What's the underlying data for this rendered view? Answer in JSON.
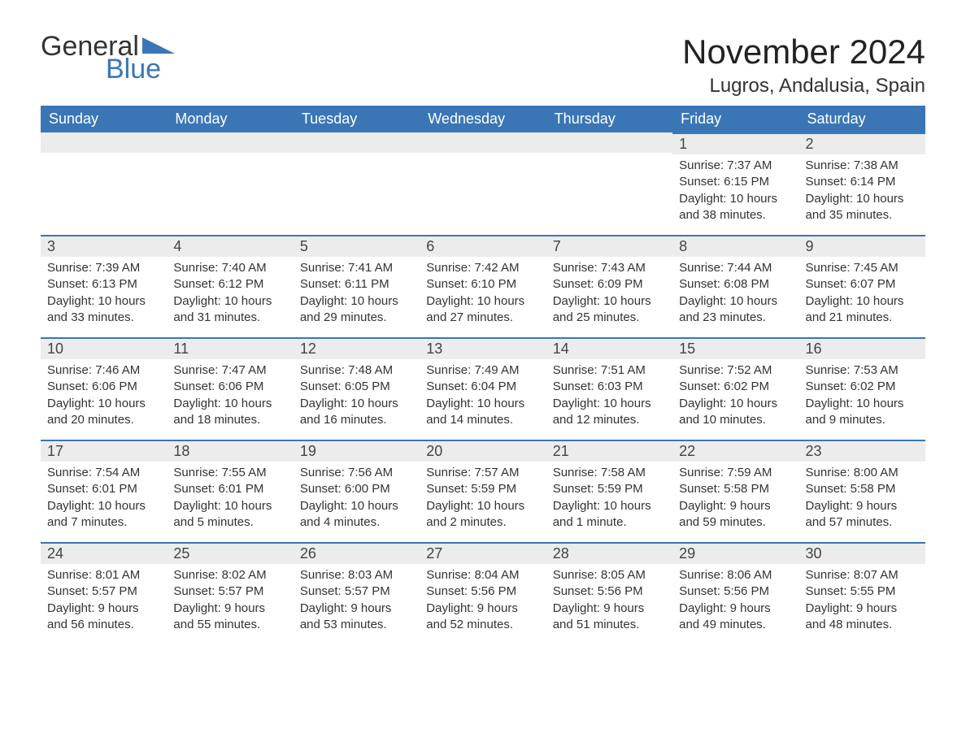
{
  "brand": {
    "word1": "General",
    "word2": "Blue",
    "accent_color": "#3a76b6"
  },
  "title": "November 2024",
  "location": "Lugros, Andalusia, Spain",
  "colors": {
    "header_bg": "#3a76b6",
    "header_text": "#ffffff",
    "daynum_bg": "#ececec",
    "row_border": "#3a76b6",
    "body_text": "#333333",
    "page_bg": "#ffffff"
  },
  "typography": {
    "month_title_fontsize": 42,
    "location_fontsize": 24,
    "dayheader_fontsize": 18,
    "daynum_fontsize": 18,
    "body_fontsize": 15
  },
  "day_headers": [
    "Sunday",
    "Monday",
    "Tuesday",
    "Wednesday",
    "Thursday",
    "Friday",
    "Saturday"
  ],
  "weeks": [
    [
      null,
      null,
      null,
      null,
      null,
      {
        "n": 1,
        "sunrise": "7:37 AM",
        "sunset": "6:15 PM",
        "daylight": "10 hours and 38 minutes."
      },
      {
        "n": 2,
        "sunrise": "7:38 AM",
        "sunset": "6:14 PM",
        "daylight": "10 hours and 35 minutes."
      }
    ],
    [
      {
        "n": 3,
        "sunrise": "7:39 AM",
        "sunset": "6:13 PM",
        "daylight": "10 hours and 33 minutes."
      },
      {
        "n": 4,
        "sunrise": "7:40 AM",
        "sunset": "6:12 PM",
        "daylight": "10 hours and 31 minutes."
      },
      {
        "n": 5,
        "sunrise": "7:41 AM",
        "sunset": "6:11 PM",
        "daylight": "10 hours and 29 minutes."
      },
      {
        "n": 6,
        "sunrise": "7:42 AM",
        "sunset": "6:10 PM",
        "daylight": "10 hours and 27 minutes."
      },
      {
        "n": 7,
        "sunrise": "7:43 AM",
        "sunset": "6:09 PM",
        "daylight": "10 hours and 25 minutes."
      },
      {
        "n": 8,
        "sunrise": "7:44 AM",
        "sunset": "6:08 PM",
        "daylight": "10 hours and 23 minutes."
      },
      {
        "n": 9,
        "sunrise": "7:45 AM",
        "sunset": "6:07 PM",
        "daylight": "10 hours and 21 minutes."
      }
    ],
    [
      {
        "n": 10,
        "sunrise": "7:46 AM",
        "sunset": "6:06 PM",
        "daylight": "10 hours and 20 minutes."
      },
      {
        "n": 11,
        "sunrise": "7:47 AM",
        "sunset": "6:06 PM",
        "daylight": "10 hours and 18 minutes."
      },
      {
        "n": 12,
        "sunrise": "7:48 AM",
        "sunset": "6:05 PM",
        "daylight": "10 hours and 16 minutes."
      },
      {
        "n": 13,
        "sunrise": "7:49 AM",
        "sunset": "6:04 PM",
        "daylight": "10 hours and 14 minutes."
      },
      {
        "n": 14,
        "sunrise": "7:51 AM",
        "sunset": "6:03 PM",
        "daylight": "10 hours and 12 minutes."
      },
      {
        "n": 15,
        "sunrise": "7:52 AM",
        "sunset": "6:02 PM",
        "daylight": "10 hours and 10 minutes."
      },
      {
        "n": 16,
        "sunrise": "7:53 AM",
        "sunset": "6:02 PM",
        "daylight": "10 hours and 9 minutes."
      }
    ],
    [
      {
        "n": 17,
        "sunrise": "7:54 AM",
        "sunset": "6:01 PM",
        "daylight": "10 hours and 7 minutes."
      },
      {
        "n": 18,
        "sunrise": "7:55 AM",
        "sunset": "6:01 PM",
        "daylight": "10 hours and 5 minutes."
      },
      {
        "n": 19,
        "sunrise": "7:56 AM",
        "sunset": "6:00 PM",
        "daylight": "10 hours and 4 minutes."
      },
      {
        "n": 20,
        "sunrise": "7:57 AM",
        "sunset": "5:59 PM",
        "daylight": "10 hours and 2 minutes."
      },
      {
        "n": 21,
        "sunrise": "7:58 AM",
        "sunset": "5:59 PM",
        "daylight": "10 hours and 1 minute."
      },
      {
        "n": 22,
        "sunrise": "7:59 AM",
        "sunset": "5:58 PM",
        "daylight": "9 hours and 59 minutes."
      },
      {
        "n": 23,
        "sunrise": "8:00 AM",
        "sunset": "5:58 PM",
        "daylight": "9 hours and 57 minutes."
      }
    ],
    [
      {
        "n": 24,
        "sunrise": "8:01 AM",
        "sunset": "5:57 PM",
        "daylight": "9 hours and 56 minutes."
      },
      {
        "n": 25,
        "sunrise": "8:02 AM",
        "sunset": "5:57 PM",
        "daylight": "9 hours and 55 minutes."
      },
      {
        "n": 26,
        "sunrise": "8:03 AM",
        "sunset": "5:57 PM",
        "daylight": "9 hours and 53 minutes."
      },
      {
        "n": 27,
        "sunrise": "8:04 AM",
        "sunset": "5:56 PM",
        "daylight": "9 hours and 52 minutes."
      },
      {
        "n": 28,
        "sunrise": "8:05 AM",
        "sunset": "5:56 PM",
        "daylight": "9 hours and 51 minutes."
      },
      {
        "n": 29,
        "sunrise": "8:06 AM",
        "sunset": "5:56 PM",
        "daylight": "9 hours and 49 minutes."
      },
      {
        "n": 30,
        "sunrise": "8:07 AM",
        "sunset": "5:55 PM",
        "daylight": "9 hours and 48 minutes."
      }
    ]
  ],
  "labels": {
    "sunrise": "Sunrise: ",
    "sunset": "Sunset: ",
    "daylight": "Daylight: "
  }
}
